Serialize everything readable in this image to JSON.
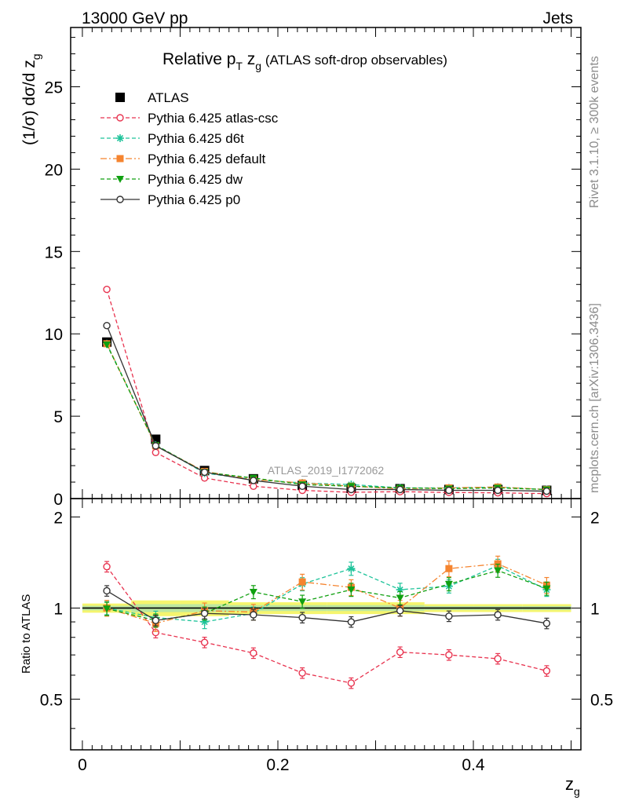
{
  "header": {
    "left": "13000 GeV pp",
    "right": "Jets"
  },
  "side_text": {
    "upper": "Rivet 3.1.10, ≥ 300k events",
    "lower": "mcplots.cern.ch [arXiv:1306.3436]"
  },
  "chart_data": [
    {
      "type": "line",
      "panel": "main",
      "title": "Relative p_T z_g (ATLAS soft-drop observables)",
      "title_parts": {
        "main": "Relative p",
        "sub1": "T",
        "mid": " z",
        "sub2": "g",
        "tail": " (ATLAS soft-drop observables)"
      },
      "ylabel": "(1/σ) dσ/d z_g",
      "ylabel_parts": {
        "main": "(1/σ) dσ/d z",
        "sub": "g"
      },
      "xlabel": "z_g",
      "xlabel_parts": {
        "main": "z",
        "sub": "g"
      },
      "watermark": "ATLAS_2019_I1772062",
      "xlim": [
        -0.012,
        0.51
      ],
      "ylim": [
        0,
        28.6
      ],
      "y_ticks": [
        0,
        5,
        10,
        15,
        20,
        25
      ],
      "x_ticks": [
        0,
        0.2,
        0.4
      ],
      "x": [
        0.025,
        0.075,
        0.125,
        0.175,
        0.225,
        0.275,
        0.325,
        0.375,
        0.425,
        0.475
      ],
      "legend_position": "top-left",
      "series": [
        {
          "name": "ATLAS",
          "color": "#000000",
          "marker": "square",
          "line": "none",
          "values": [
            9.5,
            3.6,
            1.7,
            1.2,
            0.8,
            0.62,
            0.6,
            0.55,
            0.55,
            0.5
          ]
        },
        {
          "name": "Pythia 6.425 atlas-csc",
          "color": "#e8334f",
          "marker": "open-circle",
          "line": "dashed",
          "values": [
            12.7,
            2.8,
            1.25,
            0.75,
            0.5,
            0.38,
            0.42,
            0.37,
            0.35,
            0.3
          ]
        },
        {
          "name": "Pythia 6.425 d6t",
          "color": "#1ec39a",
          "marker": "star",
          "line": "dashed",
          "values": [
            9.4,
            3.25,
            1.55,
            1.15,
            0.95,
            0.85,
            0.65,
            0.65,
            0.7,
            0.55
          ]
        },
        {
          "name": "Pythia 6.425 default",
          "color": "#f5842f",
          "marker": "filled-square",
          "line": "dashdot",
          "values": [
            9.4,
            3.2,
            1.65,
            1.15,
            0.95,
            0.75,
            0.6,
            0.65,
            0.7,
            0.55
          ]
        },
        {
          "name": "Pythia 6.425 dw",
          "color": "#10a010",
          "marker": "triangle-down",
          "line": "dashed",
          "values": [
            9.35,
            3.25,
            1.6,
            1.25,
            0.85,
            0.75,
            0.65,
            0.6,
            0.65,
            0.55
          ]
        },
        {
          "name": "Pythia 6.425 p0",
          "color": "#333333",
          "marker": "open-circle",
          "line": "solid",
          "values": [
            10.5,
            3.2,
            1.6,
            1.1,
            0.75,
            0.55,
            0.55,
            0.5,
            0.5,
            0.45
          ]
        }
      ]
    },
    {
      "type": "line",
      "panel": "ratio",
      "ylabel": "Ratio to ATLAS",
      "xlabel": "z_g",
      "xlim": [
        -0.012,
        0.51
      ],
      "ylim": [
        0.34,
        2.3
      ],
      "y_ticks": [
        0.5,
        1,
        2
      ],
      "y_tick_labels": [
        "0.5",
        "1",
        "2"
      ],
      "x_ticks": [
        0,
        0.2,
        0.4
      ],
      "x_tick_labels": [
        "0",
        "0.2",
        "0.4"
      ],
      "x": [
        0.025,
        0.075,
        0.125,
        0.175,
        0.225,
        0.275,
        0.325,
        0.375,
        0.425,
        0.475
      ],
      "band_color": "#f5f56e",
      "inner_band_color": "#b6e6a6",
      "band_half_width": [
        0.035,
        0.06,
        0.06,
        0.045,
        0.045,
        0.045,
        0.045,
        0.03,
        0.03,
        0.03
      ],
      "series": [
        {
          "name": "Pythia 6.425 atlas-csc",
          "color": "#e8334f",
          "marker": "open-circle",
          "line": "dashed",
          "values": [
            1.37,
            0.83,
            0.77,
            0.71,
            0.61,
            0.565,
            0.715,
            0.7,
            0.68,
            0.62
          ],
          "err": 0.04
        },
        {
          "name": "Pythia 6.425 d6t",
          "color": "#1ec39a",
          "marker": "star",
          "line": "dashed",
          "values": [
            1.0,
            0.93,
            0.9,
            0.96,
            1.2,
            1.35,
            1.15,
            1.18,
            1.38,
            1.15
          ],
          "err": 0.05
        },
        {
          "name": "Pythia 6.425 default",
          "color": "#f5842f",
          "marker": "filled-square",
          "line": "dashdot",
          "values": [
            1.0,
            0.89,
            0.98,
            0.97,
            1.22,
            1.17,
            1.0,
            1.35,
            1.4,
            1.19
          ],
          "err": 0.06
        },
        {
          "name": "Pythia 6.425 dw",
          "color": "#10a010",
          "marker": "triangle-down",
          "line": "dashed",
          "values": [
            0.995,
            0.91,
            0.96,
            1.13,
            1.05,
            1.15,
            1.08,
            1.2,
            1.33,
            1.16
          ],
          "err": 0.05
        },
        {
          "name": "Pythia 6.425 p0",
          "color": "#333333",
          "marker": "open-circle",
          "line": "solid",
          "values": [
            1.14,
            0.91,
            0.96,
            0.95,
            0.93,
            0.9,
            0.98,
            0.94,
            0.95,
            0.89
          ],
          "err": 0.04
        }
      ]
    }
  ]
}
